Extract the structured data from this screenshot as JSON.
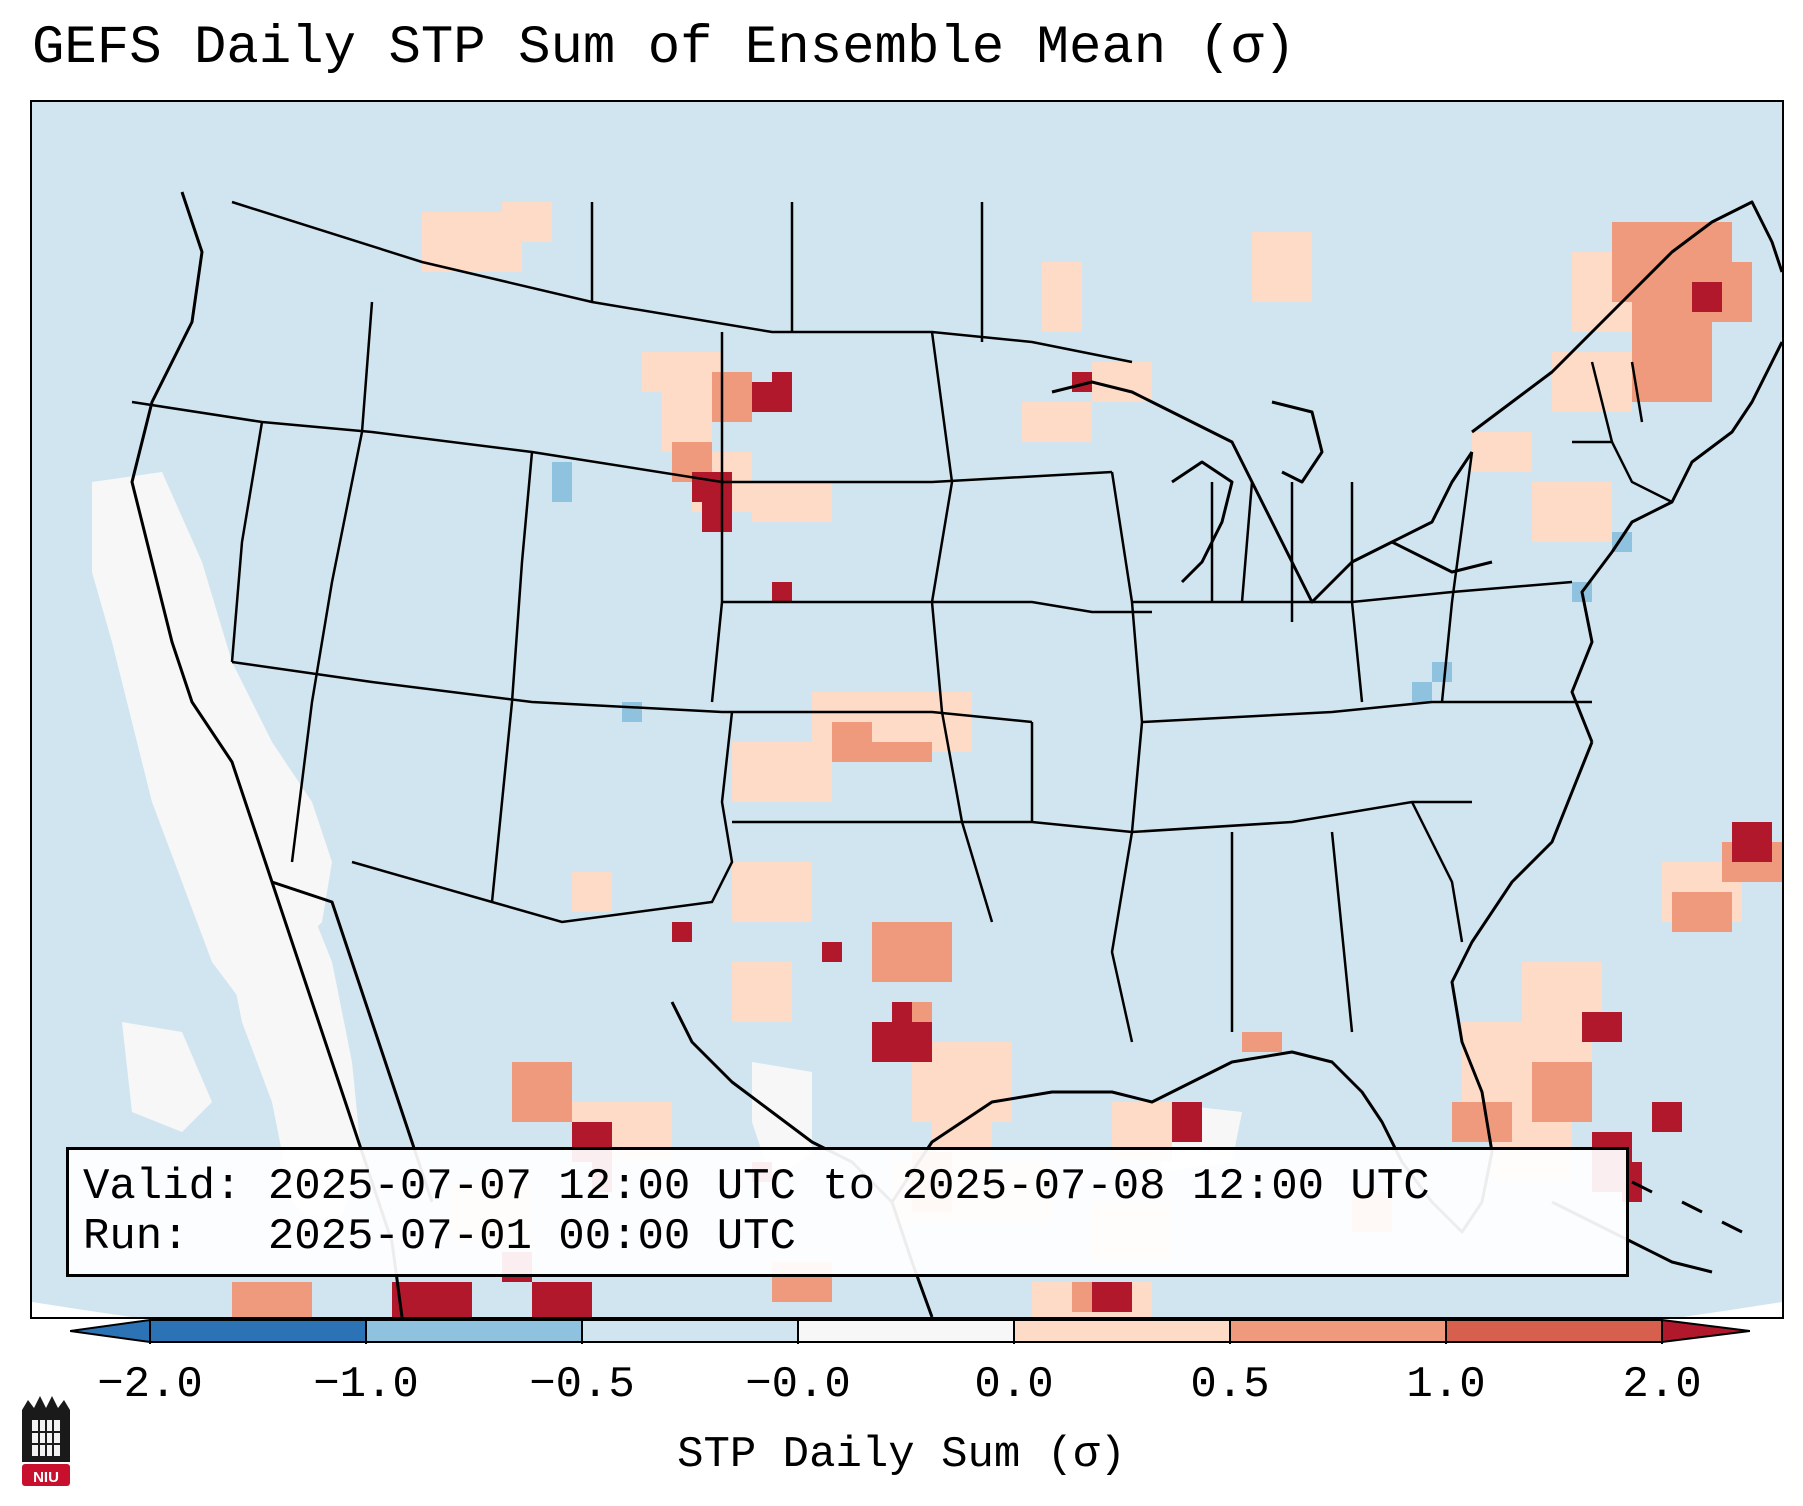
{
  "title": "GEFS Daily STP Sum of Ensemble Mean (σ)",
  "info": {
    "valid_label": "Valid:",
    "valid_value": "2025-07-07 12:00 UTC to 2025-07-08 12:00 UTC",
    "run_label": "Run:",
    "run_value": "2025-07-01 00:00 UTC"
  },
  "colorbar": {
    "label": "STP Daily Sum (σ)",
    "ticks": [
      "−2.0",
      "−1.0",
      "−0.5",
      "−0.0",
      "0.0",
      "0.5",
      "1.0",
      "2.0"
    ],
    "colors": [
      "#2c73b5",
      "#8fc2de",
      "#d1e5f0",
      "#f7f7f7",
      "#fddbc7",
      "#f09a7d",
      "#d6604d",
      "#b2182b"
    ],
    "extend": "both"
  },
  "map": {
    "projection": "Lambert Conformal, CONUS",
    "background_color": "#d1e5f0",
    "land_border_color": "#000000"
  },
  "logo": {
    "text": "NIU"
  }
}
